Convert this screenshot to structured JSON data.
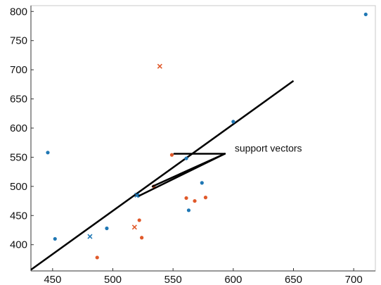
{
  "chart_data": {
    "type": "scatter",
    "title": "",
    "xlabel": "",
    "ylabel": "",
    "xlim": [
      432,
      718
    ],
    "ylim": [
      355,
      810
    ],
    "grid": false,
    "legend": "none",
    "x_ticks": [
      450,
      500,
      550,
      600,
      650,
      700
    ],
    "y_ticks": [
      400,
      450,
      500,
      550,
      600,
      650,
      700,
      750,
      800
    ],
    "colors": {
      "blue": "#1f77b4",
      "orange": "#e0592a",
      "line": "#000000"
    },
    "series": [
      {
        "marker": "dot",
        "color": "#1f77b4",
        "points": [
          [
            446,
            558
          ],
          [
            452,
            410
          ],
          [
            495,
            428
          ],
          [
            521,
            484
          ],
          [
            561,
            548
          ],
          [
            563,
            459
          ],
          [
            574,
            506
          ],
          [
            600,
            611
          ],
          [
            710,
            795
          ]
        ]
      },
      {
        "marker": "x",
        "color": "#1f77b4",
        "points": [
          [
            481,
            414
          ],
          [
            520,
            485
          ]
        ]
      },
      {
        "marker": "dot",
        "color": "#e0592a",
        "points": [
          [
            487,
            378
          ],
          [
            522,
            442
          ],
          [
            524,
            412
          ],
          [
            534,
            500
          ],
          [
            549,
            554
          ],
          [
            561,
            480
          ],
          [
            568,
            475
          ],
          [
            577,
            481
          ]
        ]
      },
      {
        "marker": "x",
        "color": "#e0592a",
        "points": [
          [
            518,
            430
          ],
          [
            539,
            706
          ]
        ]
      }
    ],
    "separator_line": {
      "x": [
        432,
        650
      ],
      "y": [
        357,
        681
      ]
    },
    "annotation": {
      "text": "support vectors",
      "arrow_tip": [
        593,
        556
      ],
      "pointer_lines": [
        [
          [
            551,
            556
          ],
          [
            593,
            556
          ]
        ],
        [
          [
            593,
            556
          ],
          [
            533,
            500
          ]
        ],
        [
          [
            593,
            556
          ],
          [
            522,
            484
          ]
        ]
      ]
    }
  }
}
